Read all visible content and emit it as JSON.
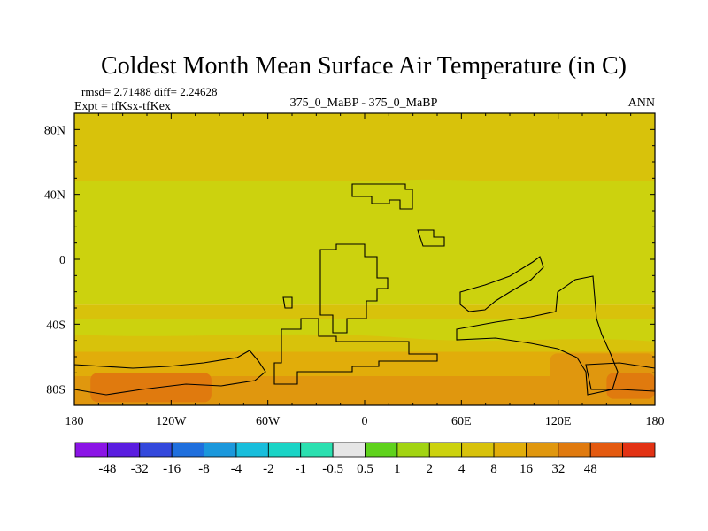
{
  "chart_data": {
    "type": "heatmap",
    "title": "Coldest Month Mean Surface Air Temperature (in C)",
    "stats_line": "rmsd= 2.71488 diff= 2.24628",
    "expt_label": "Expt = tfKsx-tfKex",
    "subtitle": "375_0_MaBP - 375_0_MaBP",
    "season": "ANN",
    "x_axis": {
      "range": [
        -180,
        180
      ],
      "ticks": [
        -180,
        -120,
        -60,
        0,
        60,
        120,
        180
      ],
      "tick_labels": [
        "180",
        "120W",
        "60W",
        "0",
        "60E",
        "120E",
        "180"
      ]
    },
    "y_axis": {
      "range": [
        -90,
        90
      ],
      "ticks": [
        80,
        40,
        0,
        -40,
        -80
      ],
      "tick_labels": [
        "80N",
        "40N",
        "0",
        "40S",
        "80S"
      ]
    },
    "colorbar": {
      "colors": [
        "#8b14e6",
        "#5a1de0",
        "#3348dc",
        "#1f6fdd",
        "#1b98dc",
        "#18bedc",
        "#1ad4c6",
        "#2be0b0",
        "#e6e6e6",
        "#5fd21c",
        "#a2d412",
        "#ccd20e",
        "#d8c20b",
        "#e1ad0a",
        "#e0970e",
        "#e07a0e",
        "#e45a10",
        "#e23214"
      ],
      "labels": [
        "-48",
        "-32",
        "-16",
        "-8",
        "-4",
        "-2",
        "-1",
        "-0.5",
        "0.5",
        "1",
        "2",
        "4",
        "8",
        "16",
        "32",
        "48"
      ]
    },
    "field_bands": [
      {
        "lat_range": [
          48,
          90
        ],
        "level": "4"
      },
      {
        "lat_range": [
          -28,
          48
        ],
        "level": "2"
      },
      {
        "lat_range": [
          -57,
          -28
        ],
        "level": "4"
      },
      {
        "lat_range": [
          -72,
          -57
        ],
        "level": "8"
      },
      {
        "lat_range": [
          -90,
          -72
        ],
        "level": "16"
      }
    ],
    "field_patches": [
      {
        "lon": [
          -170,
          -95
        ],
        "lat": [
          -88,
          -70
        ],
        "level": "32"
      },
      {
        "lon": [
          115,
          180
        ],
        "lat": [
          -88,
          -58
        ],
        "level": "16"
      },
      {
        "lon": [
          150,
          180
        ],
        "lat": [
          -86,
          -70
        ],
        "level": "32"
      }
    ],
    "contour_regions": [
      "North continent",
      "Equatorial continent",
      "West continent",
      "East continent",
      "South polar coast"
    ]
  }
}
